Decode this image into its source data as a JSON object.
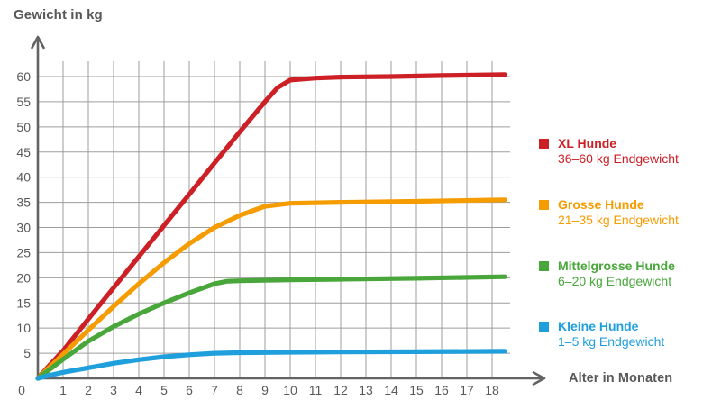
{
  "chart": {
    "title": "Gewicht in kg",
    "x_axis_label": "Alter in Monaten"
  },
  "colors": {
    "axis": "#636364",
    "grid": "#9d9d9c",
    "tick_text": "#58585a",
    "background": "#ffffff"
  },
  "chart_data": {
    "type": "line",
    "title": "Gewicht in kg",
    "xlabel": "Alter in Monaten",
    "ylabel": "Gewicht in kg",
    "xlim": [
      0,
      18.5
    ],
    "ylim": [
      0,
      63
    ],
    "grid": true,
    "legend_position": "right",
    "origin_label": "0",
    "x_ticks": [
      1,
      2,
      3,
      4,
      5,
      6,
      7,
      8,
      9,
      10,
      11,
      12,
      13,
      14,
      15,
      16,
      17,
      18
    ],
    "y_ticks": [
      5,
      10,
      15,
      20,
      25,
      30,
      35,
      40,
      45,
      50,
      55,
      60
    ],
    "series": [
      {
        "name": "XL Hunde",
        "subtitle": "36–60 kg Endgewicht",
        "color": "#cc2026",
        "points": [
          [
            0,
            0
          ],
          [
            0.5,
            2.8
          ],
          [
            1,
            5.5
          ],
          [
            2,
            11.8
          ],
          [
            3,
            18.0
          ],
          [
            4,
            24.2
          ],
          [
            5,
            30.4
          ],
          [
            6,
            36.6
          ],
          [
            7,
            42.8
          ],
          [
            8,
            49.0
          ],
          [
            9,
            55.0
          ],
          [
            9.5,
            57.8
          ],
          [
            10,
            59.3
          ],
          [
            11,
            59.7
          ],
          [
            12,
            59.9
          ],
          [
            14,
            60.0
          ],
          [
            16,
            60.2
          ],
          [
            18.5,
            60.4
          ]
        ]
      },
      {
        "name": "Grosse Hunde",
        "subtitle": "21–35 kg Endgewicht",
        "color": "#f59c00",
        "points": [
          [
            0,
            0
          ],
          [
            1,
            4.8
          ],
          [
            2,
            9.6
          ],
          [
            3,
            14.3
          ],
          [
            4,
            18.8
          ],
          [
            5,
            23.0
          ],
          [
            6,
            26.8
          ],
          [
            7,
            30.0
          ],
          [
            8,
            32.4
          ],
          [
            9,
            34.2
          ],
          [
            10,
            34.8
          ],
          [
            12,
            35.0
          ],
          [
            15,
            35.2
          ],
          [
            18.5,
            35.5
          ]
        ]
      },
      {
        "name": "Mittelgrosse Hunde",
        "subtitle": "6–20 kg Endgewicht",
        "color": "#48a63a",
        "points": [
          [
            0,
            0
          ],
          [
            1,
            3.8
          ],
          [
            2,
            7.4
          ],
          [
            3,
            10.3
          ],
          [
            4,
            12.8
          ],
          [
            5,
            15.0
          ],
          [
            6,
            17.0
          ],
          [
            7,
            18.8
          ],
          [
            7.5,
            19.3
          ],
          [
            8,
            19.4
          ],
          [
            10,
            19.6
          ],
          [
            12,
            19.7
          ],
          [
            15,
            19.9
          ],
          [
            18.5,
            20.2
          ]
        ]
      },
      {
        "name": "Kleine Hunde",
        "subtitle": "1–5 kg Endgewicht",
        "color": "#1f9fdb",
        "points": [
          [
            0,
            0
          ],
          [
            0.5,
            0.65
          ],
          [
            1,
            1.2
          ],
          [
            2,
            2.1
          ],
          [
            3,
            3.0
          ],
          [
            4,
            3.7
          ],
          [
            5,
            4.3
          ],
          [
            6,
            4.7
          ],
          [
            7,
            5.0
          ],
          [
            8,
            5.1
          ],
          [
            10,
            5.2
          ],
          [
            12,
            5.25
          ],
          [
            15,
            5.3
          ],
          [
            18.5,
            5.4
          ]
        ]
      }
    ]
  }
}
